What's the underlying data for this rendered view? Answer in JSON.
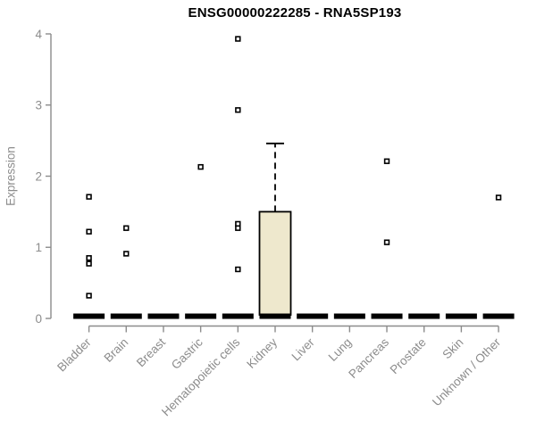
{
  "chart_data": {
    "type": "box",
    "title": "ENSG00000222285 - RNA5SP193",
    "ylabel": "Expression",
    "xlabel": "",
    "ylim": [
      0,
      4
    ],
    "yticks": [
      0,
      1,
      2,
      3,
      4
    ],
    "grid": false,
    "legend": "none",
    "categories": [
      "Bladder",
      "Brain",
      "Breast",
      "Gastric",
      "Hematopoietic cells",
      "Kidney",
      "Liver",
      "Lung",
      "Pancreas",
      "Prostate",
      "Skin",
      "Unknown / Other"
    ],
    "boxes": [
      {
        "category": "Bladder",
        "median": 0,
        "q1": 0,
        "q3": 0,
        "whisker_low": 0,
        "whisker_high": 0,
        "outliers": [
          1.71,
          1.22,
          0.85,
          0.77,
          0.32
        ]
      },
      {
        "category": "Brain",
        "median": 0,
        "q1": 0,
        "q3": 0,
        "whisker_low": 0,
        "whisker_high": 0,
        "outliers": [
          1.27,
          0.91
        ]
      },
      {
        "category": "Breast",
        "median": 0,
        "q1": 0,
        "q3": 0,
        "whisker_low": 0,
        "whisker_high": 0,
        "outliers": []
      },
      {
        "category": "Gastric",
        "median": 0,
        "q1": 0,
        "q3": 0,
        "whisker_low": 0,
        "whisker_high": 0,
        "outliers": [
          2.13
        ]
      },
      {
        "category": "Hematopoietic cells",
        "median": 0,
        "q1": 0,
        "q3": 0,
        "whisker_low": 0,
        "whisker_high": 0,
        "outliers": [
          3.93,
          2.93,
          1.33,
          1.27,
          0.69
        ]
      },
      {
        "category": "Kidney",
        "median": 0,
        "q1": 0,
        "q3": 1.5,
        "whisker_low": 0,
        "whisker_high": 2.46,
        "outliers": []
      },
      {
        "category": "Liver",
        "median": 0,
        "q1": 0,
        "q3": 0,
        "whisker_low": 0,
        "whisker_high": 0,
        "outliers": []
      },
      {
        "category": "Lung",
        "median": 0,
        "q1": 0,
        "q3": 0,
        "whisker_low": 0,
        "whisker_high": 0,
        "outliers": []
      },
      {
        "category": "Pancreas",
        "median": 0,
        "q1": 0,
        "q3": 0,
        "whisker_low": 0,
        "whisker_high": 0,
        "outliers": [
          2.21,
          1.07
        ]
      },
      {
        "category": "Prostate",
        "median": 0,
        "q1": 0,
        "q3": 0,
        "whisker_low": 0,
        "whisker_high": 0,
        "outliers": []
      },
      {
        "category": "Skin",
        "median": 0,
        "q1": 0,
        "q3": 0,
        "whisker_low": 0,
        "whisker_high": 0,
        "outliers": []
      },
      {
        "category": "Unknown / Other",
        "median": 0,
        "q1": 0,
        "q3": 0,
        "whisker_low": 0,
        "whisker_high": 0,
        "outliers": [
          1.7
        ]
      }
    ],
    "colors": {
      "box_fill": "#EEE8CD",
      "box_border": "#000000",
      "median": "#000000",
      "whisker": "#000000",
      "outlier_stroke": "#000000",
      "outlier_fill": "#ffffff",
      "axis": "#8c8c8c",
      "tick_label": "#8c8c8c",
      "title": "#000000"
    }
  }
}
